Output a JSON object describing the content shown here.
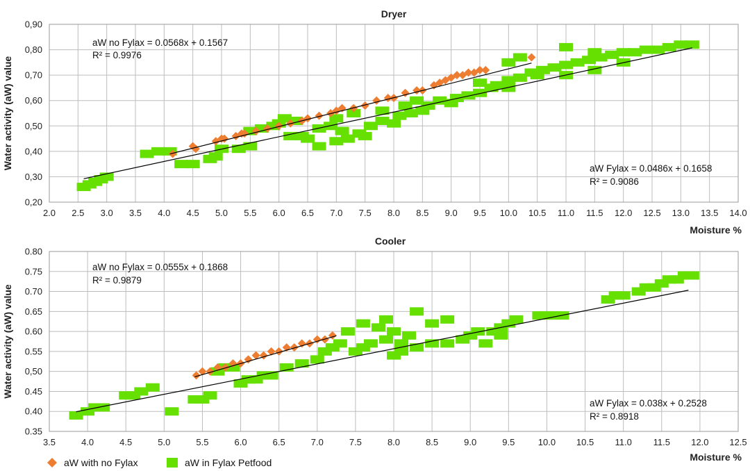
{
  "colors": {
    "no_fylax": "#ED7D31",
    "fylax": "#66E000",
    "trend": "#000000",
    "grid": "#BDBDBD"
  },
  "legend": [
    {
      "label": "aW with no Fylax",
      "marker": "diamond",
      "color_key": "no_fylax"
    },
    {
      "label": "aW in Fylax Petfood",
      "marker": "square",
      "color_key": "fylax"
    }
  ],
  "chart_data": [
    {
      "type": "scatter",
      "title": "Dryer",
      "xlabel": "Moisture %",
      "ylabel": "Water activity (aW) value",
      "xlim": [
        2.0,
        14.0
      ],
      "ylim": [
        0.2,
        0.9
      ],
      "xticks": [
        "2.0",
        "2.5",
        "3.0",
        "3.5",
        "4.0",
        "4.5",
        "5.0",
        "5.5",
        "6.0",
        "6.5",
        "7.0",
        "7.5",
        "8.0",
        "8.5",
        "9.0",
        "9.5",
        "10.0",
        "10.5",
        "11.0",
        "11.5",
        "12.0",
        "12.5",
        "13.0",
        "13.5",
        "14.0"
      ],
      "yticks": [
        "0,20",
        "0,30",
        "0,40",
        "0,50",
        "0,60",
        "0,70",
        "0,80",
        "0,90"
      ],
      "grid": true,
      "annotations": [
        {
          "text": "aW no Fylax = 0.0568x + 0.1567",
          "r2": "R² = 0.9976",
          "position": "top-left"
        },
        {
          "text": "aW Fylax = 0.0486x + 0.1658",
          "r2": "R² = 0.9086",
          "position": "bottom-right"
        }
      ],
      "trendlines": [
        {
          "series": "no_fylax",
          "slope": 0.0568,
          "intercept": 0.1567,
          "x_range": [
            4.1,
            10.4
          ]
        },
        {
          "series": "fylax",
          "slope": 0.0486,
          "intercept": 0.1658,
          "x_range": [
            2.6,
            13.2
          ]
        }
      ],
      "series": [
        {
          "key": "no_fylax",
          "name": "aW with no Fylax",
          "marker": "diamond",
          "points": [
            [
              4.15,
              0.39
            ],
            [
              4.5,
              0.42
            ],
            [
              4.55,
              0.41
            ],
            [
              4.9,
              0.44
            ],
            [
              5.0,
              0.45
            ],
            [
              5.05,
              0.45
            ],
            [
              5.25,
              0.46
            ],
            [
              5.35,
              0.47
            ],
            [
              5.4,
              0.47
            ],
            [
              5.6,
              0.48
            ],
            [
              5.8,
              0.49
            ],
            [
              6.0,
              0.5
            ],
            [
              6.2,
              0.51
            ],
            [
              6.4,
              0.52
            ],
            [
              6.5,
              0.53
            ],
            [
              6.7,
              0.54
            ],
            [
              6.9,
              0.55
            ],
            [
              7.0,
              0.56
            ],
            [
              7.1,
              0.57
            ],
            [
              7.3,
              0.57
            ],
            [
              7.5,
              0.58
            ],
            [
              7.7,
              0.6
            ],
            [
              7.9,
              0.61
            ],
            [
              8.0,
              0.61
            ],
            [
              8.2,
              0.63
            ],
            [
              8.4,
              0.64
            ],
            [
              8.5,
              0.64
            ],
            [
              8.7,
              0.66
            ],
            [
              8.8,
              0.67
            ],
            [
              8.9,
              0.68
            ],
            [
              9.0,
              0.69
            ],
            [
              9.1,
              0.7
            ],
            [
              9.2,
              0.7
            ],
            [
              9.3,
              0.71
            ],
            [
              9.4,
              0.71
            ],
            [
              9.5,
              0.72
            ],
            [
              9.6,
              0.72
            ],
            [
              10.4,
              0.77
            ]
          ]
        },
        {
          "key": "fylax",
          "name": "aW in Fylax Petfood",
          "marker": "square",
          "points": [
            [
              2.6,
              0.26
            ],
            [
              2.7,
              0.27
            ],
            [
              2.8,
              0.28
            ],
            [
              2.9,
              0.29
            ],
            [
              3.0,
              0.3
            ],
            [
              3.7,
              0.39
            ],
            [
              3.9,
              0.4
            ],
            [
              4.1,
              0.4
            ],
            [
              4.3,
              0.35
            ],
            [
              4.5,
              0.35
            ],
            [
              4.8,
              0.37
            ],
            [
              4.9,
              0.38
            ],
            [
              5.0,
              0.41
            ],
            [
              5.3,
              0.41
            ],
            [
              5.5,
              0.42
            ],
            [
              5.5,
              0.48
            ],
            [
              5.7,
              0.49
            ],
            [
              5.9,
              0.5
            ],
            [
              6.0,
              0.51
            ],
            [
              6.1,
              0.53
            ],
            [
              6.3,
              0.52
            ],
            [
              6.2,
              0.46
            ],
            [
              6.4,
              0.46
            ],
            [
              6.5,
              0.45
            ],
            [
              6.7,
              0.42
            ],
            [
              6.7,
              0.49
            ],
            [
              6.9,
              0.5
            ],
            [
              7.0,
              0.44
            ],
            [
              7.1,
              0.48
            ],
            [
              7.2,
              0.45
            ],
            [
              7.4,
              0.47
            ],
            [
              7.5,
              0.46
            ],
            [
              7.0,
              0.53
            ],
            [
              7.3,
              0.55
            ],
            [
              7.6,
              0.5
            ],
            [
              7.8,
              0.52
            ],
            [
              8.0,
              0.51
            ],
            [
              8.1,
              0.54
            ],
            [
              8.3,
              0.55
            ],
            [
              8.5,
              0.56
            ],
            [
              8.6,
              0.58
            ],
            [
              8.8,
              0.6
            ],
            [
              9.0,
              0.59
            ],
            [
              9.1,
              0.61
            ],
            [
              9.3,
              0.62
            ],
            [
              9.5,
              0.63
            ],
            [
              9.7,
              0.65
            ],
            [
              9.8,
              0.66
            ],
            [
              10.0,
              0.68
            ],
            [
              10.2,
              0.69
            ],
            [
              10.4,
              0.71
            ],
            [
              10.6,
              0.72
            ],
            [
              10.8,
              0.73
            ],
            [
              11.0,
              0.74
            ],
            [
              11.2,
              0.75
            ],
            [
              11.4,
              0.76
            ],
            [
              11.6,
              0.77
            ],
            [
              11.8,
              0.78
            ],
            [
              12.0,
              0.79
            ],
            [
              12.2,
              0.79
            ],
            [
              12.4,
              0.8
            ],
            [
              12.6,
              0.8
            ],
            [
              12.8,
              0.81
            ],
            [
              13.0,
              0.82
            ],
            [
              13.2,
              0.82
            ],
            [
              10.0,
              0.75
            ],
            [
              10.2,
              0.77
            ],
            [
              11.0,
              0.81
            ],
            [
              11.5,
              0.79
            ],
            [
              7.8,
              0.56
            ],
            [
              8.2,
              0.58
            ],
            [
              8.4,
              0.6
            ],
            [
              9.5,
              0.67
            ],
            [
              10.0,
              0.65
            ],
            [
              10.5,
              0.7
            ],
            [
              11.0,
              0.7
            ],
            [
              11.5,
              0.72
            ],
            [
              12.0,
              0.75
            ]
          ]
        }
      ]
    },
    {
      "type": "scatter",
      "title": "Cooler",
      "xlabel": "Moisture %",
      "ylabel": "Water activity (aW) value",
      "xlim": [
        3.5,
        12.5
      ],
      "ylim": [
        0.35,
        0.8
      ],
      "xticks": [
        "3.5",
        "4.0",
        "4.5",
        "5.0",
        "5.5",
        "6.0",
        "6.5",
        "7.0",
        "7.5",
        "8.0",
        "8.5",
        "9.0",
        "9.5",
        "10.0",
        "10.5",
        "11.0",
        "11.5",
        "12.0",
        "12.5"
      ],
      "yticks": [
        "0.35",
        "0.40",
        "0.45",
        "0,50",
        "0.55",
        "0.60",
        "0.65",
        "0.70",
        "0.75",
        "0.80"
      ],
      "grid": true,
      "annotations": [
        {
          "text": "aW no Fylax = 0.0555x + 0.1868",
          "r2": "R² = 0.9879",
          "position": "top-left"
        },
        {
          "text": "aW Fylax = 0.038x + 0.2528",
          "r2": "R² = 0.8918",
          "position": "bottom-right"
        }
      ],
      "trendlines": [
        {
          "series": "no_fylax",
          "slope": 0.0555,
          "intercept": 0.1868,
          "x_range": [
            5.4,
            7.25
          ]
        },
        {
          "series": "fylax",
          "slope": 0.038,
          "intercept": 0.2528,
          "x_range": [
            3.85,
            11.85
          ]
        }
      ],
      "series": [
        {
          "key": "no_fylax",
          "name": "aW with no Fylax",
          "marker": "diamond",
          "points": [
            [
              5.42,
              0.49
            ],
            [
              5.5,
              0.5
            ],
            [
              5.6,
              0.5
            ],
            [
              5.7,
              0.51
            ],
            [
              5.8,
              0.51
            ],
            [
              5.9,
              0.52
            ],
            [
              6.0,
              0.52
            ],
            [
              6.1,
              0.53
            ],
            [
              6.2,
              0.54
            ],
            [
              6.3,
              0.54
            ],
            [
              6.4,
              0.55
            ],
            [
              6.5,
              0.55
            ],
            [
              6.6,
              0.56
            ],
            [
              6.7,
              0.56
            ],
            [
              6.8,
              0.57
            ],
            [
              6.9,
              0.57
            ],
            [
              7.0,
              0.58
            ],
            [
              7.1,
              0.58
            ],
            [
              7.2,
              0.59
            ]
          ]
        },
        {
          "key": "fylax",
          "name": "aW in Fylax Petfood",
          "marker": "square",
          "points": [
            [
              3.85,
              0.39
            ],
            [
              4.0,
              0.4
            ],
            [
              4.1,
              0.41
            ],
            [
              4.2,
              0.41
            ],
            [
              4.5,
              0.44
            ],
            [
              4.6,
              0.44
            ],
            [
              4.7,
              0.45
            ],
            [
              4.85,
              0.46
            ],
            [
              5.1,
              0.4
            ],
            [
              5.4,
              0.43
            ],
            [
              5.5,
              0.43
            ],
            [
              5.6,
              0.44
            ],
            [
              5.7,
              0.5
            ],
            [
              5.8,
              0.51
            ],
            [
              5.9,
              0.51
            ],
            [
              6.0,
              0.47
            ],
            [
              6.1,
              0.48
            ],
            [
              6.2,
              0.48
            ],
            [
              6.3,
              0.49
            ],
            [
              6.4,
              0.49
            ],
            [
              6.6,
              0.51
            ],
            [
              6.8,
              0.52
            ],
            [
              7.0,
              0.53
            ],
            [
              7.1,
              0.55
            ],
            [
              7.2,
              0.56
            ],
            [
              7.3,
              0.57
            ],
            [
              7.4,
              0.6
            ],
            [
              7.5,
              0.55
            ],
            [
              7.6,
              0.56
            ],
            [
              7.7,
              0.57
            ],
            [
              7.8,
              0.61
            ],
            [
              7.9,
              0.58
            ],
            [
              8.0,
              0.6
            ],
            [
              8.1,
              0.57
            ],
            [
              8.2,
              0.59
            ],
            [
              7.6,
              0.62
            ],
            [
              7.9,
              0.63
            ],
            [
              8.3,
              0.65
            ],
            [
              8.5,
              0.62
            ],
            [
              8.7,
              0.63
            ],
            [
              8.0,
              0.54
            ],
            [
              8.1,
              0.55
            ],
            [
              8.3,
              0.56
            ],
            [
              8.5,
              0.57
            ],
            [
              8.7,
              0.57
            ],
            [
              8.9,
              0.58
            ],
            [
              9.0,
              0.59
            ],
            [
              9.1,
              0.6
            ],
            [
              9.3,
              0.6
            ],
            [
              9.4,
              0.61
            ],
            [
              9.5,
              0.62
            ],
            [
              9.6,
              0.63
            ],
            [
              9.2,
              0.57
            ],
            [
              9.4,
              0.59
            ],
            [
              9.9,
              0.64
            ],
            [
              10.0,
              0.64
            ],
            [
              10.1,
              0.64
            ],
            [
              10.2,
              0.64
            ],
            [
              10.8,
              0.68
            ],
            [
              10.9,
              0.69
            ],
            [
              11.0,
              0.69
            ],
            [
              11.2,
              0.7
            ],
            [
              11.3,
              0.71
            ],
            [
              11.4,
              0.71
            ],
            [
              11.5,
              0.72
            ],
            [
              11.6,
              0.73
            ],
            [
              11.7,
              0.73
            ],
            [
              11.8,
              0.74
            ],
            [
              11.9,
              0.74
            ]
          ]
        }
      ]
    }
  ]
}
